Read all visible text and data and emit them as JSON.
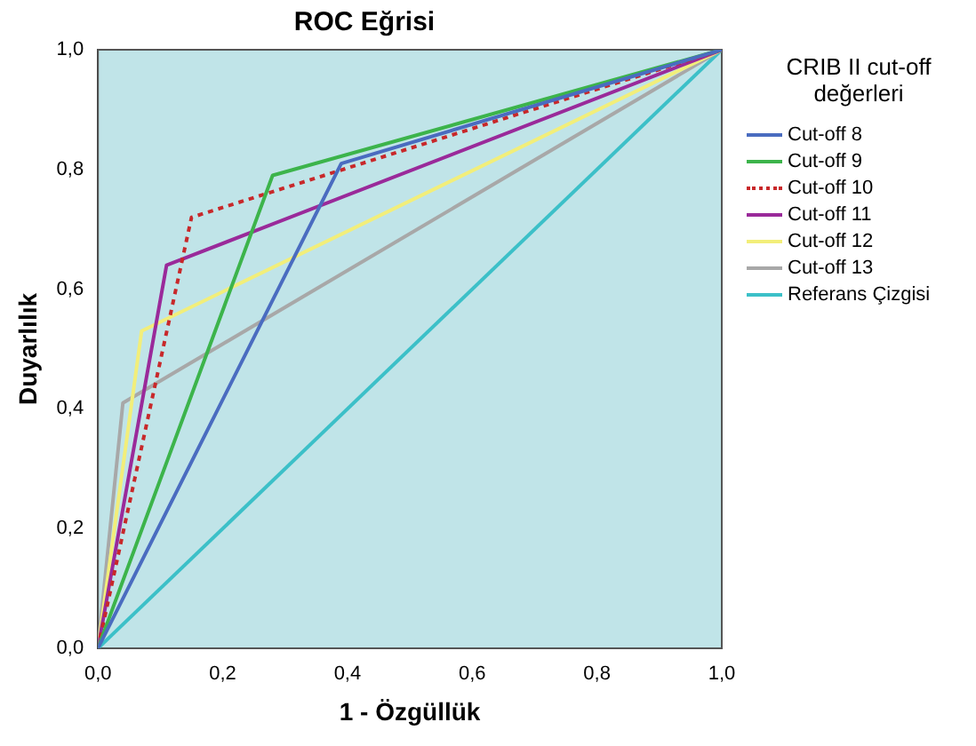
{
  "chart_data": {
    "type": "line",
    "title": "ROC Eğrisi",
    "xlabel": "1 - Özgüllük",
    "ylabel": "Duyarlılık",
    "legend_title": "CRIB II cut-off değerleri",
    "legend": "right",
    "grid": false,
    "marker": "none",
    "xlim": [
      0,
      1
    ],
    "ylim": [
      0,
      1
    ],
    "xticks": [
      {
        "value": 0,
        "label": "0,0"
      },
      {
        "value": 0.2,
        "label": "0,2"
      },
      {
        "value": 0.4,
        "label": "0,4"
      },
      {
        "value": 0.6,
        "label": "0,6"
      },
      {
        "value": 0.8,
        "label": "0,8"
      },
      {
        "value": 1,
        "label": "1,0"
      }
    ],
    "yticks": [
      {
        "value": 0,
        "label": "0,0"
      },
      {
        "value": 0.2,
        "label": "0,2"
      },
      {
        "value": 0.4,
        "label": "0,4"
      },
      {
        "value": 0.6,
        "label": "0,6"
      },
      {
        "value": 0.8,
        "label": "0,8"
      },
      {
        "value": 1,
        "label": "1,0"
      }
    ],
    "series": [
      {
        "name": "Cut-off 8",
        "color": "#4a6cc0",
        "x": [
          0,
          0.39,
          1
        ],
        "values": [
          0,
          0.81,
          1
        ]
      },
      {
        "name": "Cut-off 9",
        "color": "#3cb44b",
        "x": [
          0,
          0.28,
          1
        ],
        "values": [
          0,
          0.79,
          1
        ]
      },
      {
        "name": "Cut-off 10",
        "color": "#c8282a",
        "line_style": "dotted",
        "x": [
          0,
          0.15,
          1
        ],
        "values": [
          0,
          0.72,
          1
        ]
      },
      {
        "name": "Cut-off 11",
        "color": "#9a2a9a",
        "x": [
          0,
          0.11,
          1
        ],
        "values": [
          0,
          0.64,
          1
        ]
      },
      {
        "name": "Cut-off 12",
        "color": "#f2ee7a",
        "x": [
          0,
          0.07,
          1
        ],
        "values": [
          0,
          0.53,
          1
        ]
      },
      {
        "name": "Cut-off 13",
        "color": "#a8a8a8",
        "x": [
          0,
          0.04,
          1
        ],
        "values": [
          0,
          0.41,
          1
        ]
      },
      {
        "name": "Referans Çizgisi",
        "color": "#3cc0c8",
        "x": [
          0,
          1
        ],
        "values": [
          0,
          1
        ]
      }
    ]
  }
}
